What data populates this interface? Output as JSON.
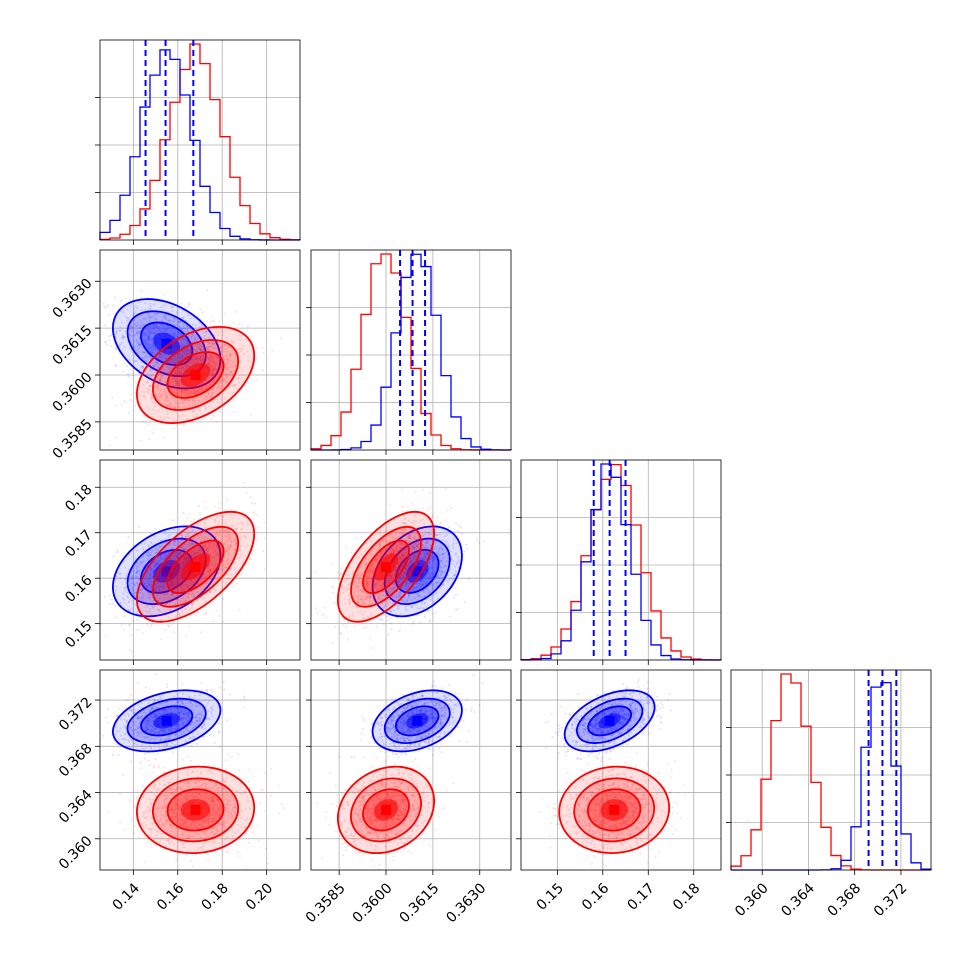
{
  "chart_data": {
    "type": "corner",
    "grid": true,
    "colors": {
      "series_a": "#0000ff",
      "series_b": "#ff0000"
    },
    "parameters": [
      {
        "range": [
          0.125,
          0.215
        ],
        "ticks": [
          0.14,
          0.16,
          0.18,
          0.2
        ],
        "tick_labels": [
          "0.14",
          "0.16",
          "0.18",
          "0.20"
        ]
      },
      {
        "range": [
          0.3576,
          0.364
        ],
        "ticks": [
          0.3585,
          0.36,
          0.3615,
          0.363
        ],
        "tick_labels": [
          "0.3585",
          "0.3600",
          "0.3615",
          "0.3630"
        ]
      },
      {
        "range": [
          0.142,
          0.186
        ],
        "ticks": [
          0.15,
          0.16,
          0.17,
          0.18
        ],
        "tick_labels": [
          "0.15",
          "0.16",
          "0.17",
          "0.18"
        ]
      },
      {
        "range": [
          0.3573,
          0.3746
        ],
        "ticks": [
          0.36,
          0.364,
          0.368,
          0.372
        ],
        "tick_labels": [
          "0.360",
          "0.364",
          "0.368",
          "0.372"
        ]
      }
    ],
    "series": [
      {
        "color": "#0000ff",
        "quantiles": [
          [
            0.1455,
            0.1545,
            0.167
          ],
          [
            0.36045,
            0.36085,
            0.36125
          ],
          [
            0.158,
            0.1615,
            0.165
          ],
          [
            0.3692,
            0.3704,
            0.3716
          ]
        ],
        "means": [
          0.155,
          0.361,
          0.1615,
          0.3702
        ],
        "sds": [
          0.011,
          0.00065,
          0.0045,
          0.0012
        ],
        "correlations": {
          "1-0": -0.35,
          "2-0": 0.35,
          "2-1": 0.35,
          "3-0": 0.35,
          "3-1": 0.35,
          "3-2": 0.45
        }
      },
      {
        "color": "#ff0000",
        "means": [
          0.168,
          0.36,
          0.1625,
          0.3625
        ],
        "sds": [
          0.012,
          0.0007,
          0.0055,
          0.0017
        ],
        "correlations": {
          "1-0": 0.4,
          "2-0": 0.6,
          "2-1": 0.6,
          "3-0": 0.05,
          "3-1": 0.2,
          "3-2": 0.05
        }
      }
    ]
  }
}
